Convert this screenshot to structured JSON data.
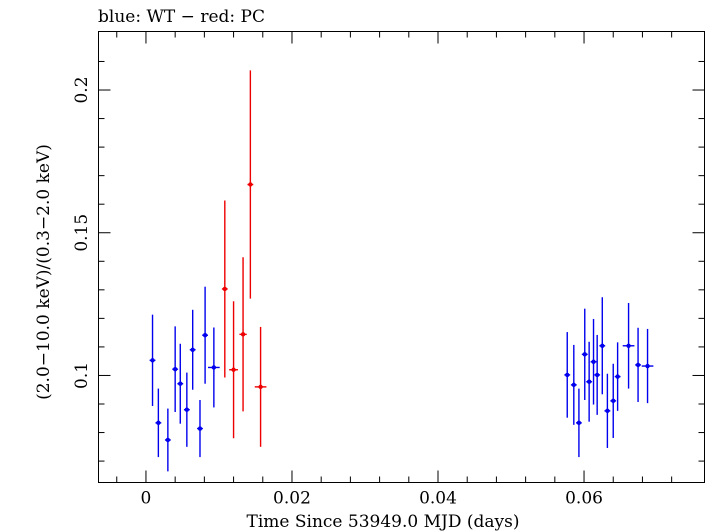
{
  "chart_data": {
    "type": "scatter",
    "title": "blue: WT − red: PC",
    "xlabel": "Time Since 53949.0 MJD (days)",
    "ylabel": "(2.0−10.0 keV)/(0.3−2.0 keV)",
    "xlim": [
      -0.0065,
      0.0765
    ],
    "ylim": [
      0.0625,
      0.2205
    ],
    "xticks": [
      {
        "value": 0,
        "label": "0"
      },
      {
        "value": 0.02,
        "label": "0.02"
      },
      {
        "value": 0.04,
        "label": "0.04"
      },
      {
        "value": 0.06,
        "label": "0.06"
      }
    ],
    "yticks": [
      {
        "value": 0.1,
        "label": "0.1"
      },
      {
        "value": 0.15,
        "label": "0.15"
      },
      {
        "value": 0.2,
        "label": "0.2"
      }
    ],
    "grid": false,
    "series": [
      {
        "name": "WT",
        "color": "#0000ee",
        "x": [
          0.0009,
          0.0017,
          0.003,
          0.004,
          0.0047,
          0.0056,
          0.0064,
          0.0074,
          0.0081,
          0.0093,
          0.0577,
          0.0586,
          0.0593,
          0.0601,
          0.0607,
          0.0613,
          0.0618,
          0.0625,
          0.0632,
          0.064,
          0.0646,
          0.0661,
          0.0674,
          0.0687
        ],
        "y": [
          0.1053,
          0.0834,
          0.0774,
          0.1022,
          0.0971,
          0.088,
          0.109,
          0.0814,
          0.1141,
          0.1028,
          0.1002,
          0.0967,
          0.0834,
          0.1074,
          0.0978,
          0.1048,
          0.1002,
          0.1104,
          0.0876,
          0.0911,
          0.0996,
          0.1104,
          0.1037,
          0.1033
        ],
        "err": [
          0.016,
          0.012,
          0.011,
          0.015,
          0.014,
          0.013,
          0.014,
          0.01,
          0.017,
          0.014,
          0.015,
          0.014,
          0.012,
          0.016,
          0.014,
          0.015,
          0.014,
          0.017,
          0.013,
          0.013,
          0.012,
          0.015,
          0.013,
          0.013
        ],
        "xerr": [
          0.0004,
          0.0004,
          0.0004,
          0.0004,
          0.0004,
          0.0004,
          0.0004,
          0.0004,
          0.0004,
          0.0008,
          0.0004,
          0.0004,
          0.0004,
          0.0004,
          0.0004,
          0.0004,
          0.0004,
          0.0004,
          0.0004,
          0.0004,
          0.0004,
          0.0008,
          0.0004,
          0.0008
        ]
      },
      {
        "name": "PC",
        "color": "#ee0000",
        "x": [
          0.0108,
          0.012,
          0.0133,
          0.0143,
          0.0157
        ],
        "y": [
          0.1303,
          0.102,
          0.1144,
          0.1669,
          0.096
        ],
        "err": [
          0.031,
          0.024,
          0.027,
          0.04,
          0.021
        ],
        "xerr": [
          0.0004,
          0.0006,
          0.0005,
          0.0004,
          0.0008
        ]
      }
    ]
  }
}
